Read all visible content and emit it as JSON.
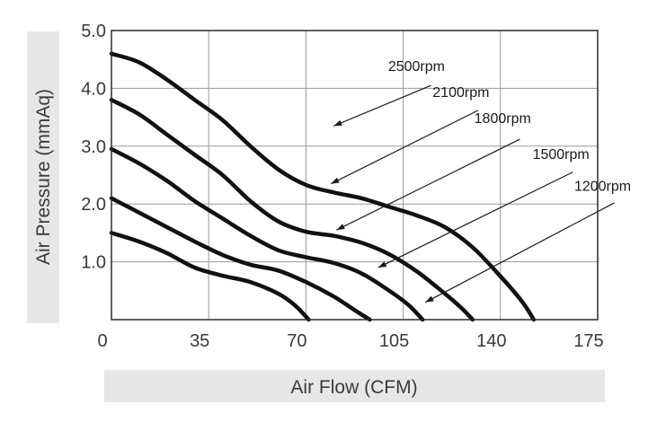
{
  "chart_data": {
    "type": "line",
    "xlabel": "Air Flow (CFM)",
    "ylabel": "Air Pressure (mmAq)",
    "xlim": [
      0,
      175
    ],
    "ylim": [
      0,
      5.0
    ],
    "xticks": [
      "0",
      "35",
      "70",
      "105",
      "140",
      "175"
    ],
    "yticks": [
      "1.0",
      "2.0",
      "3.0",
      "4.0",
      "5.0"
    ],
    "grid": true,
    "series": [
      {
        "name": "2500rpm",
        "label_x": 120,
        "label_y": 4.3,
        "points": [
          [
            0,
            4.6
          ],
          [
            10,
            4.45
          ],
          [
            20,
            4.15
          ],
          [
            30,
            3.8
          ],
          [
            40,
            3.45
          ],
          [
            50,
            3.0
          ],
          [
            60,
            2.6
          ],
          [
            70,
            2.33
          ],
          [
            80,
            2.2
          ],
          [
            90,
            2.1
          ],
          [
            100,
            1.95
          ],
          [
            110,
            1.8
          ],
          [
            120,
            1.6
          ],
          [
            130,
            1.25
          ],
          [
            140,
            0.75
          ],
          [
            148,
            0.3
          ],
          [
            152,
            0.0
          ]
        ]
      },
      {
        "name": "2100rpm",
        "label_x": 136,
        "label_y": 3.85,
        "points": [
          [
            0,
            3.8
          ],
          [
            10,
            3.55
          ],
          [
            20,
            3.2
          ],
          [
            30,
            2.85
          ],
          [
            40,
            2.5
          ],
          [
            50,
            2.05
          ],
          [
            60,
            1.7
          ],
          [
            70,
            1.52
          ],
          [
            80,
            1.45
          ],
          [
            90,
            1.33
          ],
          [
            100,
            1.13
          ],
          [
            110,
            0.83
          ],
          [
            120,
            0.45
          ],
          [
            126,
            0.2
          ],
          [
            130,
            0.0
          ]
        ]
      },
      {
        "name": "1800rpm",
        "label_x": 151,
        "label_y": 3.4,
        "points": [
          [
            0,
            2.95
          ],
          [
            10,
            2.7
          ],
          [
            20,
            2.4
          ],
          [
            30,
            2.05
          ],
          [
            40,
            1.75
          ],
          [
            50,
            1.45
          ],
          [
            60,
            1.2
          ],
          [
            70,
            1.08
          ],
          [
            80,
            0.98
          ],
          [
            90,
            0.8
          ],
          [
            100,
            0.5
          ],
          [
            107,
            0.25
          ],
          [
            112,
            0.0
          ]
        ]
      },
      {
        "name": "1500rpm",
        "label_x": 172,
        "label_y": 2.78,
        "points": [
          [
            0,
            2.1
          ],
          [
            10,
            1.85
          ],
          [
            20,
            1.6
          ],
          [
            30,
            1.35
          ],
          [
            40,
            1.12
          ],
          [
            50,
            0.95
          ],
          [
            60,
            0.85
          ],
          [
            70,
            0.65
          ],
          [
            80,
            0.4
          ],
          [
            88,
            0.15
          ],
          [
            93,
            0.0
          ]
        ]
      },
      {
        "name": "1200rpm",
        "label_x": 187,
        "label_y": 2.23,
        "points": [
          [
            0,
            1.5
          ],
          [
            10,
            1.35
          ],
          [
            20,
            1.15
          ],
          [
            30,
            0.9
          ],
          [
            40,
            0.76
          ],
          [
            50,
            0.65
          ],
          [
            60,
            0.45
          ],
          [
            66,
            0.25
          ],
          [
            71,
            0.0
          ]
        ]
      }
    ],
    "annotation_arrows": [
      {
        "series": "2500rpm",
        "from": [
          115,
          4.05
        ],
        "to": [
          80,
          3.35
        ]
      },
      {
        "series": "2100rpm",
        "from": [
          132,
          3.62
        ],
        "to": [
          79,
          2.35
        ]
      },
      {
        "series": "1800rpm",
        "from": [
          147,
          3.12
        ],
        "to": [
          81,
          1.55
        ]
      },
      {
        "series": "1500rpm",
        "from": [
          166,
          2.55
        ],
        "to": [
          96,
          0.9
        ]
      },
      {
        "series": "1200rpm",
        "from": [
          181,
          2.02
        ],
        "to": [
          113,
          0.3
        ]
      }
    ]
  }
}
